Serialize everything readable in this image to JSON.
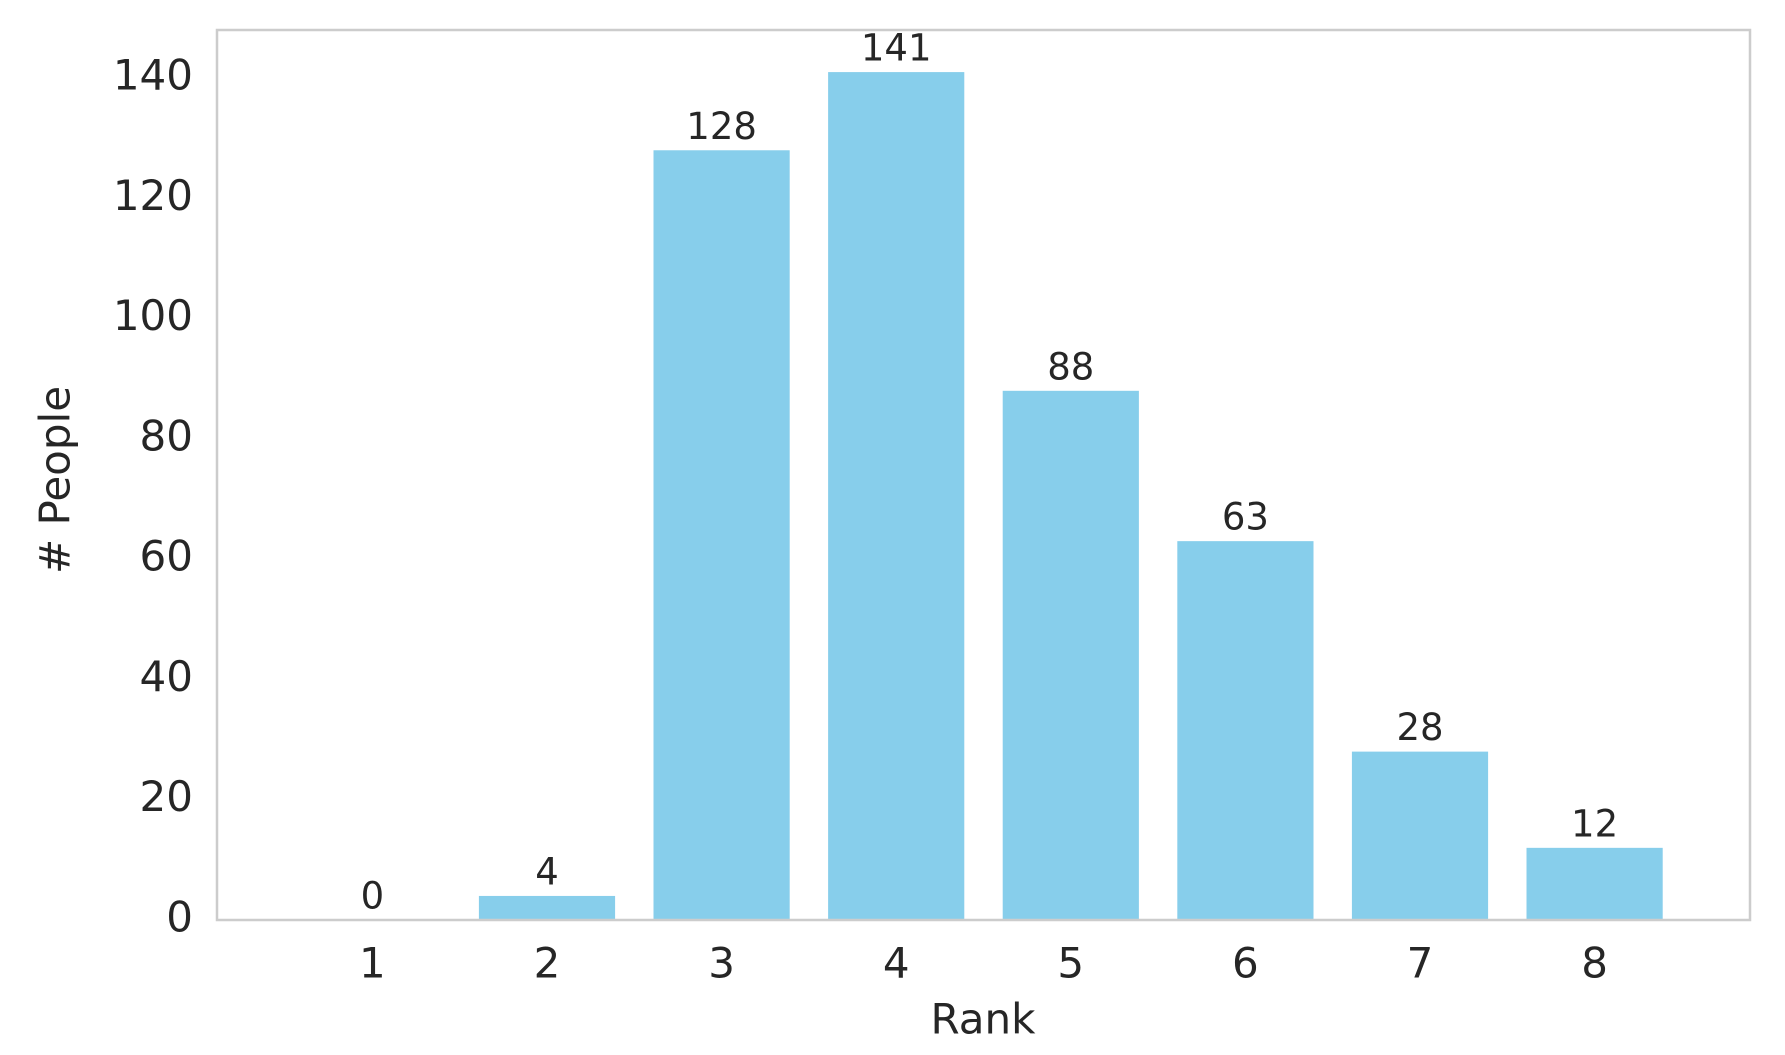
{
  "chart_data": {
    "type": "bar",
    "x_label": "Rank",
    "y_label": "# People",
    "categories": [
      "1",
      "2",
      "3",
      "4",
      "5",
      "6",
      "7",
      "8"
    ],
    "values": [
      0,
      4,
      128,
      141,
      88,
      63,
      28,
      12
    ],
    "color": "#87ceeb",
    "ylim": [
      0,
      148
    ],
    "yticks": [
      0,
      20,
      40,
      60,
      80,
      100,
      120,
      140
    ],
    "grid": false
  }
}
